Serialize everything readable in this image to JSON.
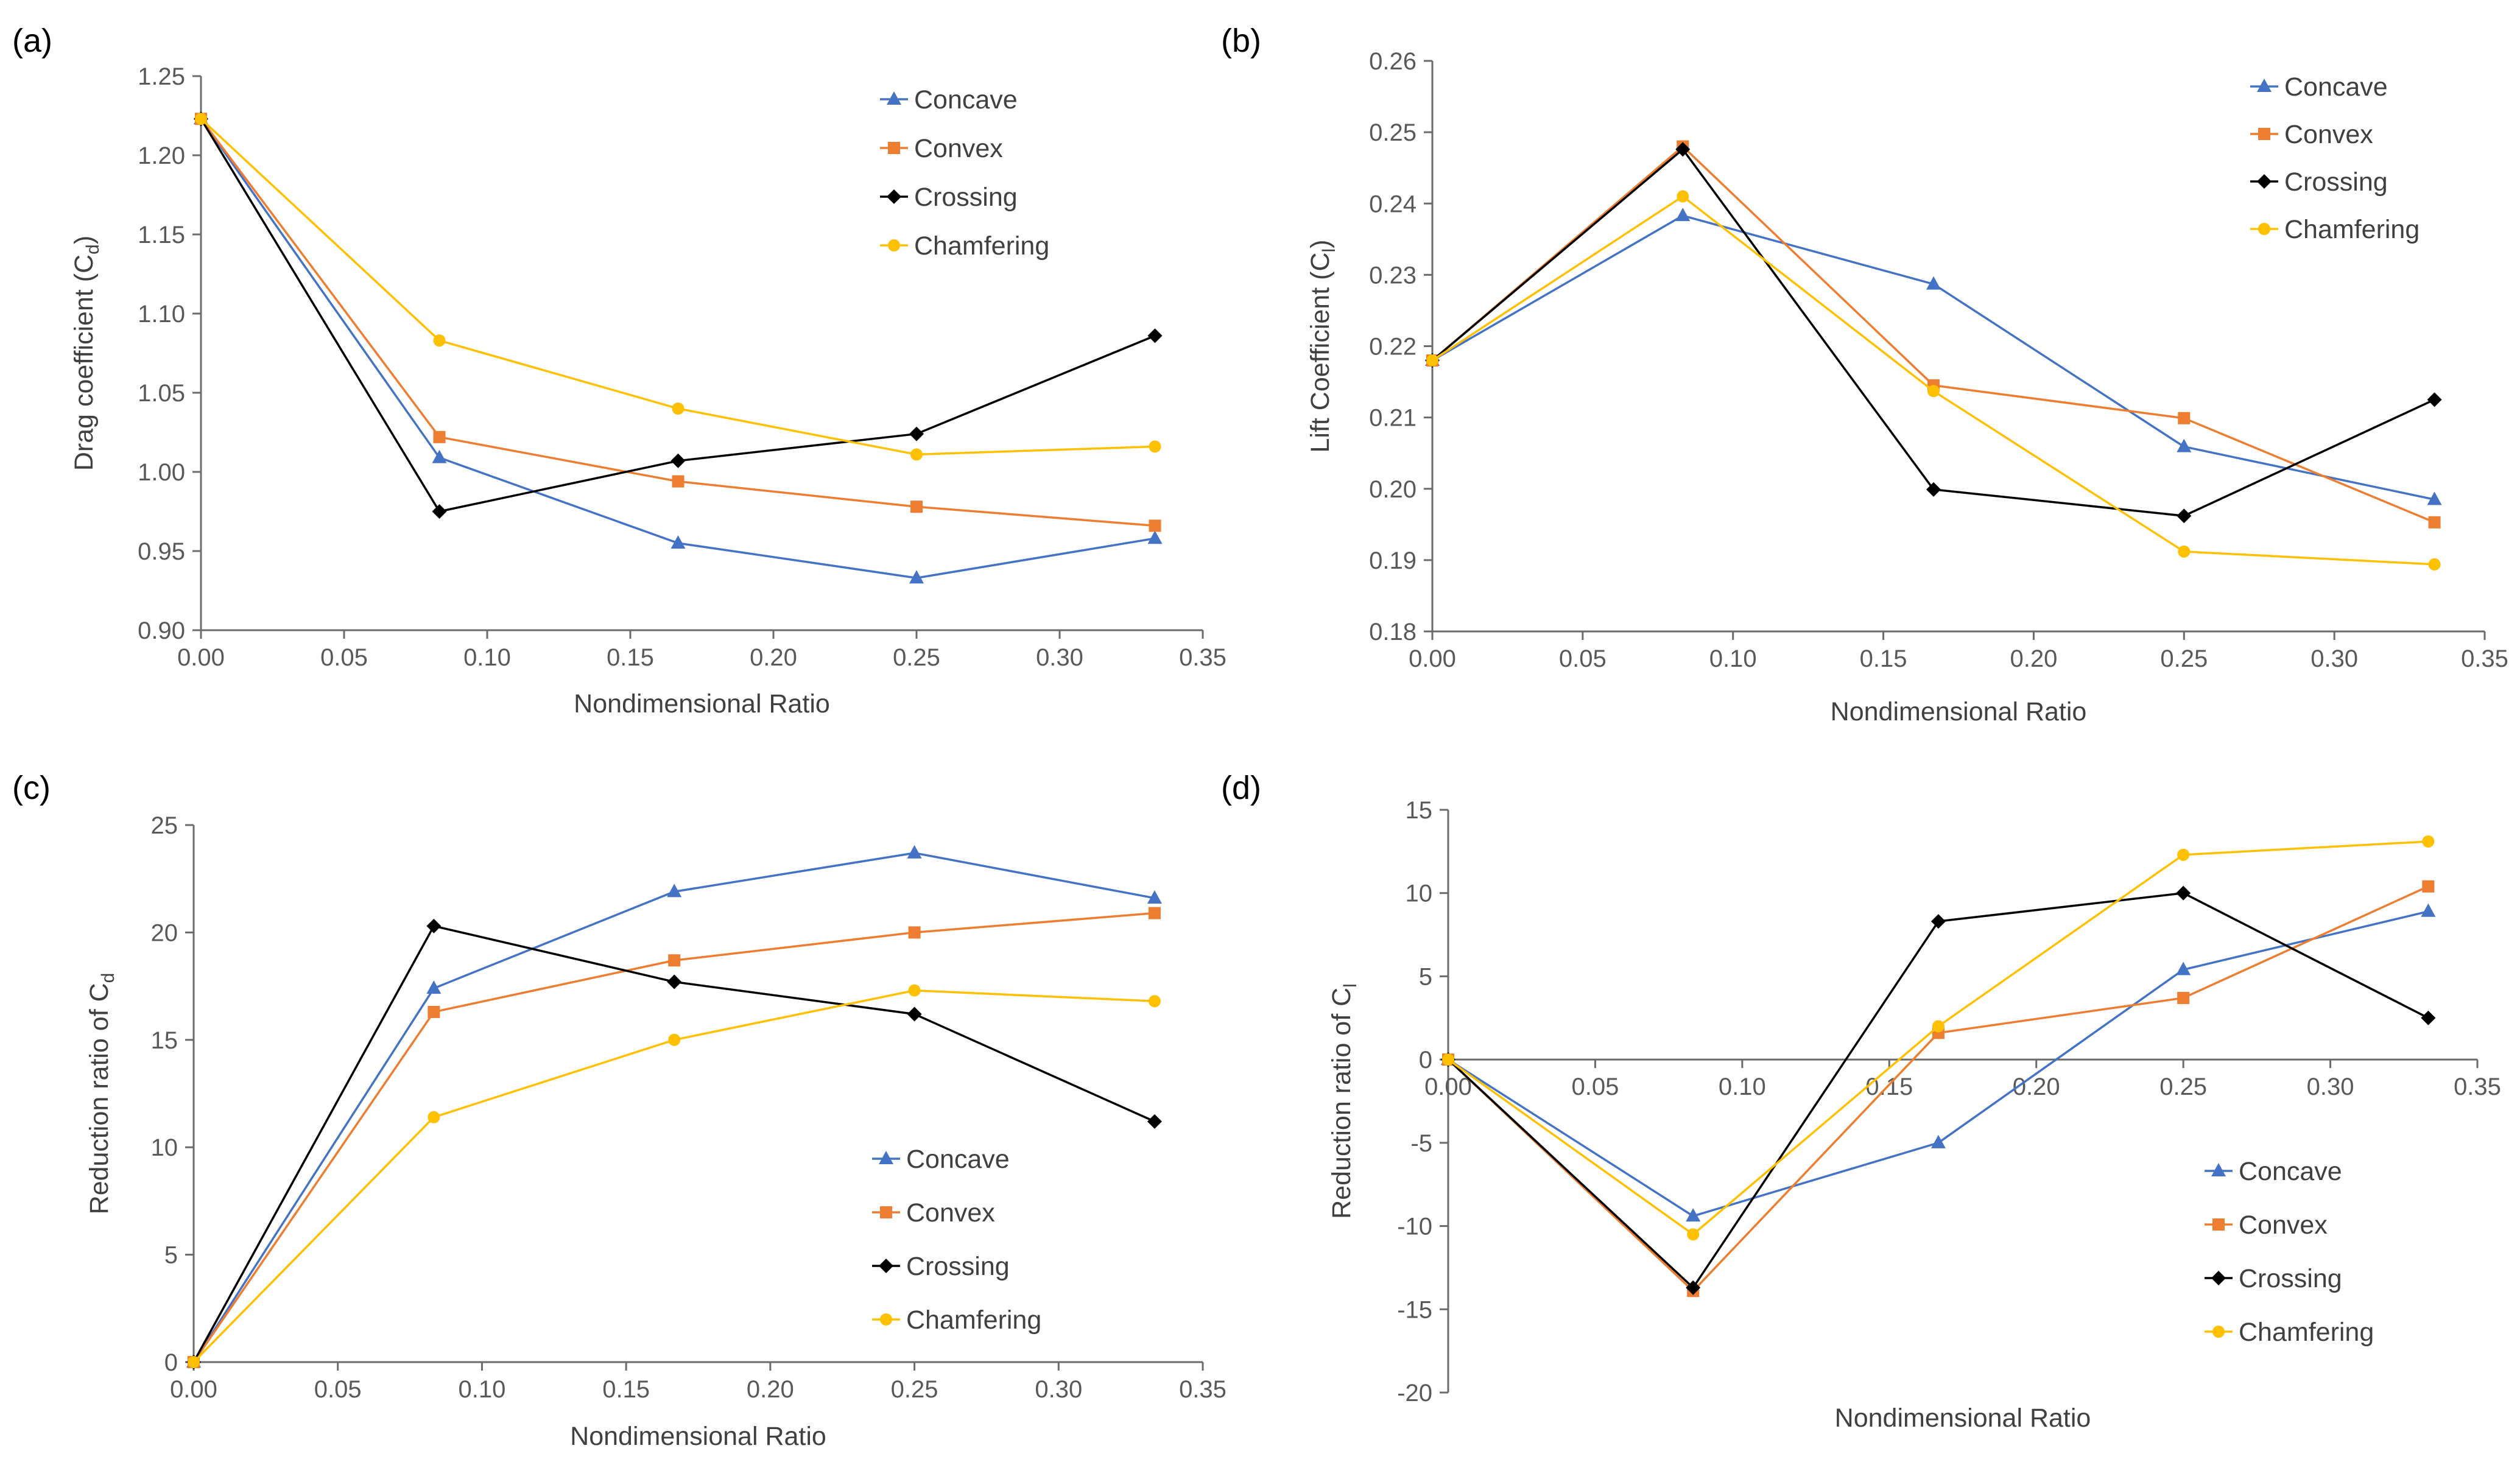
{
  "figure": {
    "series_styles": [
      {
        "name": "Concave",
        "color": "#4472C4",
        "marker": "triangle"
      },
      {
        "name": "Convex",
        "color": "#ED7D31",
        "marker": "square"
      },
      {
        "name": "Crossing",
        "color": "#000000",
        "marker": "diamond"
      },
      {
        "name": "Chamfering",
        "color": "#FFC000",
        "marker": "circle"
      }
    ]
  },
  "chart_data": [
    {
      "panel_label": "(a)",
      "type": "line",
      "title": "",
      "xlabel": "Nondimensional Ratio",
      "ylabel": "Drag coefficient (C",
      "ylabel_sub": "d",
      "ylabel_end": ")",
      "xlim": [
        0,
        0.35
      ],
      "ylim": [
        0.9,
        1.25
      ],
      "xticks": [
        "0.00",
        "0.05",
        "0.10",
        "0.15",
        "0.20",
        "0.25",
        "0.30",
        "0.35"
      ],
      "yticks": [
        "0.90",
        "0.95",
        "1.00",
        "1.05",
        "1.10",
        "1.15",
        "1.20",
        "1.25"
      ],
      "legend_position": "top-right",
      "x": [
        0,
        0.0833,
        0.1667,
        0.25,
        0.3333
      ],
      "series": [
        {
          "name": "Concave",
          "values": [
            1.223,
            1.009,
            0.955,
            0.933,
            0.958
          ]
        },
        {
          "name": "Convex",
          "values": [
            1.223,
            1.022,
            0.994,
            0.978,
            0.966
          ]
        },
        {
          "name": "Crossing",
          "values": [
            1.223,
            0.975,
            1.007,
            1.024,
            1.086
          ]
        },
        {
          "name": "Chamfering",
          "values": [
            1.223,
            1.083,
            1.04,
            1.011,
            1.016
          ]
        }
      ]
    },
    {
      "panel_label": "(b)",
      "type": "line",
      "title": "",
      "xlabel": "Nondimensional Ratio",
      "ylabel": "Lift Coefficient (C",
      "ylabel_sub": "l",
      "ylabel_end": ")",
      "xlim": [
        0,
        0.35
      ],
      "ylim": [
        0.18,
        0.26
      ],
      "xticks": [
        "0.00",
        "0.05",
        "0.10",
        "0.15",
        "0.20",
        "0.25",
        "0.30",
        "0.35"
      ],
      "yticks": [
        "0.18",
        "0.19",
        "0.20",
        "0.21",
        "0.22",
        "0.23",
        "0.24",
        "0.25",
        "0.26"
      ],
      "legend_position": "top-right",
      "x": [
        0,
        0.0833,
        0.1667,
        0.25,
        0.3333
      ],
      "series": [
        {
          "name": "Concave",
          "values": [
            0.218,
            0.2383,
            0.2287,
            0.2059,
            0.1985
          ]
        },
        {
          "name": "Convex",
          "values": [
            0.218,
            0.248,
            0.2145,
            0.2099,
            0.1953
          ]
        },
        {
          "name": "Crossing",
          "values": [
            0.218,
            0.2476,
            0.1999,
            0.1962,
            0.2125
          ]
        },
        {
          "name": "Chamfering",
          "values": [
            0.218,
            0.241,
            0.2137,
            0.1912,
            0.1894
          ]
        }
      ]
    },
    {
      "panel_label": "(c)",
      "type": "line",
      "title": "",
      "xlabel": "Nondimensional Ratio",
      "ylabel": "Reduction ratio of C",
      "ylabel_sub": "d",
      "ylabel_end": "",
      "xlim": [
        0,
        0.35
      ],
      "ylim": [
        0,
        25
      ],
      "xticks": [
        "0.00",
        "0.05",
        "0.10",
        "0.15",
        "0.20",
        "0.25",
        "0.30",
        "0.35"
      ],
      "yticks": [
        "0",
        "5",
        "10",
        "15",
        "20",
        "25"
      ],
      "legend_position": "bottom-right",
      "x": [
        0,
        0.0833,
        0.1667,
        0.25,
        0.3333
      ],
      "series": [
        {
          "name": "Concave",
          "values": [
            0,
            17.4,
            21.9,
            23.7,
            21.6
          ]
        },
        {
          "name": "Convex",
          "values": [
            0,
            16.3,
            18.7,
            20.0,
            20.9
          ]
        },
        {
          "name": "Crossing",
          "values": [
            0,
            20.3,
            17.7,
            16.2,
            11.2
          ]
        },
        {
          "name": "Chamfering",
          "values": [
            0,
            11.4,
            15.0,
            17.3,
            16.8
          ]
        }
      ]
    },
    {
      "panel_label": "(d)",
      "type": "line",
      "title": "",
      "xlabel": "Nondimensional Ratio",
      "ylabel": "Reduction ratio of C",
      "ylabel_sub": "l",
      "ylabel_end": "",
      "xlim": [
        0,
        0.35
      ],
      "ylim": [
        -20,
        15
      ],
      "xticks": [
        "0.00",
        "0.05",
        "0.10",
        "0.15",
        "0.20",
        "0.25",
        "0.30",
        "0.35"
      ],
      "yticks": [
        "-20",
        "-15",
        "-10",
        "-5",
        "0",
        "5",
        "10",
        "15"
      ],
      "legend_position": "bottom-right",
      "x": [
        0,
        0.0833,
        0.1667,
        0.25,
        0.3333
      ],
      "series": [
        {
          "name": "Concave",
          "values": [
            0,
            -9.4,
            -5.0,
            5.4,
            8.9
          ]
        },
        {
          "name": "Convex",
          "values": [
            0,
            -13.9,
            1.6,
            3.7,
            10.4
          ]
        },
        {
          "name": "Crossing",
          "values": [
            0,
            -13.7,
            8.3,
            10.0,
            2.5
          ]
        },
        {
          "name": "Chamfering",
          "values": [
            0,
            -10.5,
            2.0,
            12.3,
            13.1
          ]
        }
      ]
    }
  ]
}
